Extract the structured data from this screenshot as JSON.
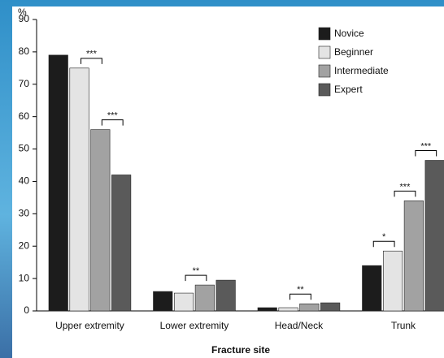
{
  "chart_data": {
    "type": "bar",
    "y_label": "%",
    "x_label": "Fracture site",
    "categories": [
      "Upper extremity",
      "Lower extremity",
      "Head/Neck",
      "Trunk"
    ],
    "series": [
      {
        "name": "Novice",
        "color": "#1c1c1c",
        "values": [
          79,
          6,
          1,
          14
        ]
      },
      {
        "name": "Beginner",
        "color": "#e4e4e4",
        "values": [
          75,
          5.5,
          1,
          18.5
        ]
      },
      {
        "name": "Intermediate",
        "color": "#a2a2a2",
        "values": [
          56,
          8,
          2.2,
          34
        ]
      },
      {
        "name": "Expert",
        "color": "#5a5a5a",
        "values": [
          42,
          9.5,
          2.5,
          46.5
        ]
      }
    ],
    "ylim": [
      0,
      90
    ],
    "yticks": [
      0,
      10,
      20,
      30,
      40,
      50,
      60,
      70,
      80,
      90
    ],
    "legend": "top-right",
    "annotations": [
      {
        "text": "***",
        "category": "Upper extremity",
        "series": [
          "Beginner",
          "Intermediate"
        ]
      },
      {
        "text": "***",
        "category": "Upper extremity",
        "series": [
          "Intermediate",
          "Expert"
        ]
      },
      {
        "text": "**",
        "category": "Lower extremity",
        "series": [
          "Beginner",
          "Intermediate"
        ]
      },
      {
        "text": "**",
        "category": "Head/Neck",
        "series": [
          "Beginner",
          "Intermediate"
        ]
      },
      {
        "text": "*",
        "category": "Trunk",
        "series": [
          "Novice",
          "Beginner"
        ]
      },
      {
        "text": "***",
        "category": "Trunk",
        "series": [
          "Beginner",
          "Intermediate"
        ]
      },
      {
        "text": "***",
        "category": "Trunk",
        "series": [
          "Intermediate",
          "Expert"
        ]
      }
    ]
  }
}
